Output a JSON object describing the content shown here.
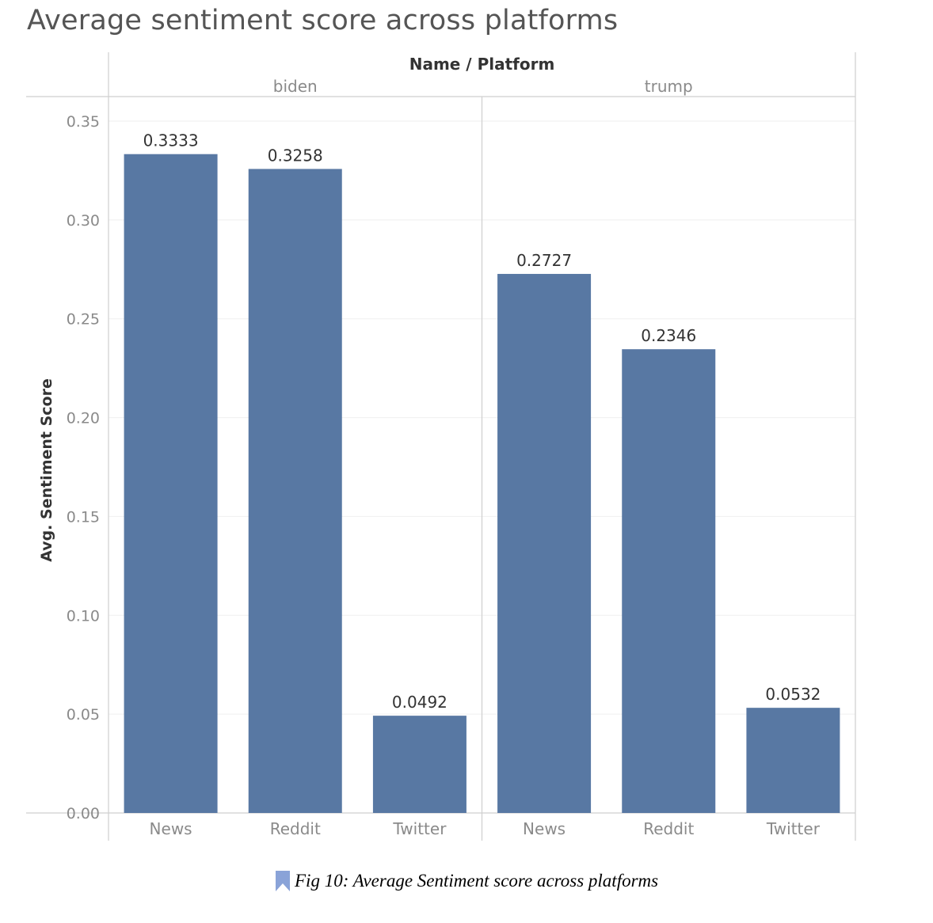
{
  "title": "Average sentiment score across platforms",
  "caption": "Fig 10:  Average Sentiment score across platforms",
  "caption_icon": "bookmark-icon",
  "colors": {
    "bar": "#5878a3",
    "title": "#555555",
    "tick": "#8a8a8a",
    "grid": "#efefef",
    "axis_line": "#cfcfcf",
    "caption_icon": "#8aa3d8"
  },
  "chart_data": {
    "type": "bar",
    "title": "Average sentiment score across platforms",
    "header_title": "Name / Platform",
    "ylabel": "Avg. Sentiment Score",
    "ylim": [
      0,
      0.35
    ],
    "yticks": [
      "0.00",
      "0.05",
      "0.10",
      "0.15",
      "0.20",
      "0.25",
      "0.30",
      "0.35"
    ],
    "grid": true,
    "groups": [
      {
        "name": "biden",
        "categories": [
          "News",
          "Reddit",
          "Twitter"
        ],
        "values": [
          0.3333,
          0.3258,
          0.0492
        ],
        "labels": [
          "0.3333",
          "0.3258",
          "0.0492"
        ]
      },
      {
        "name": "trump",
        "categories": [
          "News",
          "Reddit",
          "Twitter"
        ],
        "values": [
          0.2727,
          0.2346,
          0.0532
        ],
        "labels": [
          "0.2727",
          "0.2346",
          "0.0532"
        ]
      }
    ]
  }
}
